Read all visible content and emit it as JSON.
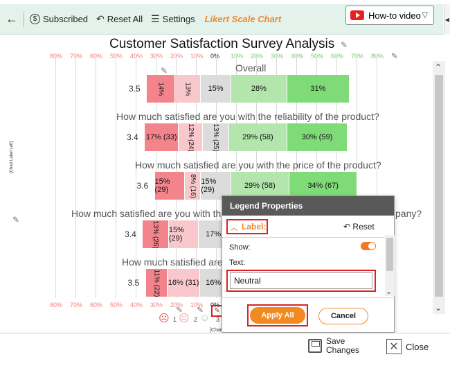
{
  "toolbar": {
    "subscribed": "Subscribed",
    "reset_all": "Reset All",
    "settings": "Settings",
    "app_title": "Likert Scale Chart",
    "howto": "How-to video"
  },
  "chart": {
    "title": "Customer Satisfaction Survey Analysis",
    "side_label": "[Chart Label Left]",
    "footer": "[Chart Footer]",
    "axis_ticks": [
      "80%",
      "70%",
      "60%",
      "50%",
      "40%",
      "30%",
      "20%",
      "10%",
      "0%",
      "10%",
      "20%",
      "30%",
      "40%",
      "50%",
      "60%",
      "70%",
      "80%"
    ],
    "face_numbers": [
      "1",
      "2",
      "3"
    ]
  },
  "chart_data": {
    "type": "bar",
    "title": "Customer Satisfaction Survey Analysis",
    "orientation": "horizontal-diverging",
    "xlim": [
      -80,
      80
    ],
    "rows": [
      {
        "question": "Overall",
        "average": "3.5",
        "segments": [
          {
            "label": "14%",
            "value": 14,
            "color": "#f4848c"
          },
          {
            "label": "13%",
            "value": 13,
            "color": "#f9c8cc"
          },
          {
            "label": "15%",
            "value": 15,
            "color": "#dcdcdc"
          },
          {
            "label": "28%",
            "value": 28,
            "color": "#b3e6ac"
          },
          {
            "label": "31%",
            "value": 31,
            "color": "#7fdb78"
          }
        ]
      },
      {
        "question": "How much satisfied are you with the reliability of the product?",
        "average": "3.4",
        "segments": [
          {
            "label": "17% (33)",
            "value": 17,
            "color": "#f4848c"
          },
          {
            "label": "12% (24)",
            "value": 12,
            "color": "#f9c8cc"
          },
          {
            "label": "13% (25)",
            "value": 13,
            "color": "#dcdcdc"
          },
          {
            "label": "29% (58)",
            "value": 29,
            "color": "#b3e6ac"
          },
          {
            "label": "30% (59)",
            "value": 30,
            "color": "#7fdb78"
          }
        ]
      },
      {
        "question": "How much satisfied are you with the price of the product?",
        "average": "3.6",
        "segments": [
          {
            "label": "15% (29)",
            "value": 15,
            "color": "#f4848c"
          },
          {
            "label": "8% (16)",
            "value": 8,
            "color": "#f9c8cc"
          },
          {
            "label": "15% (29)",
            "value": 15,
            "color": "#dcdcdc"
          },
          {
            "label": "29% (58)",
            "value": 29,
            "color": "#b3e6ac"
          },
          {
            "label": "34% (67)",
            "value": 34,
            "color": "#7fdb78"
          }
        ]
      },
      {
        "question": "How much satisfied are you with th",
        "question_end": "pany?",
        "average": "3.4",
        "segments": [
          {
            "label": "13% (26)",
            "value": 13,
            "color": "#f4848c"
          },
          {
            "label": "15% (29)",
            "value": 15,
            "color": "#f9c8cc"
          },
          {
            "label": "17% (",
            "value": 17,
            "color": "#dcdcdc"
          }
        ]
      },
      {
        "question": "How much satisfied are",
        "average": "3.5",
        "segments": [
          {
            "label": "11% (22)",
            "value": 11,
            "color": "#f4848c"
          },
          {
            "label": "16% (31)",
            "value": 16,
            "color": "#f9c8cc"
          },
          {
            "label": "16% (",
            "value": 16,
            "color": "#dcdcdc"
          }
        ]
      }
    ]
  },
  "panel": {
    "title": "Legend Properties",
    "section": "Label:",
    "reset": "Reset",
    "show_label": "Show:",
    "text_label": "Text:",
    "text_value": "Neutral",
    "apply": "Apply All",
    "cancel": "Cancel"
  },
  "bottom": {
    "save_line1": "Save",
    "save_line2": "Changes",
    "close": "Close"
  },
  "colors": {
    "accent": "#f28a20",
    "highlight": "#e02020",
    "toolbar_bg": "#e3f2ea"
  }
}
